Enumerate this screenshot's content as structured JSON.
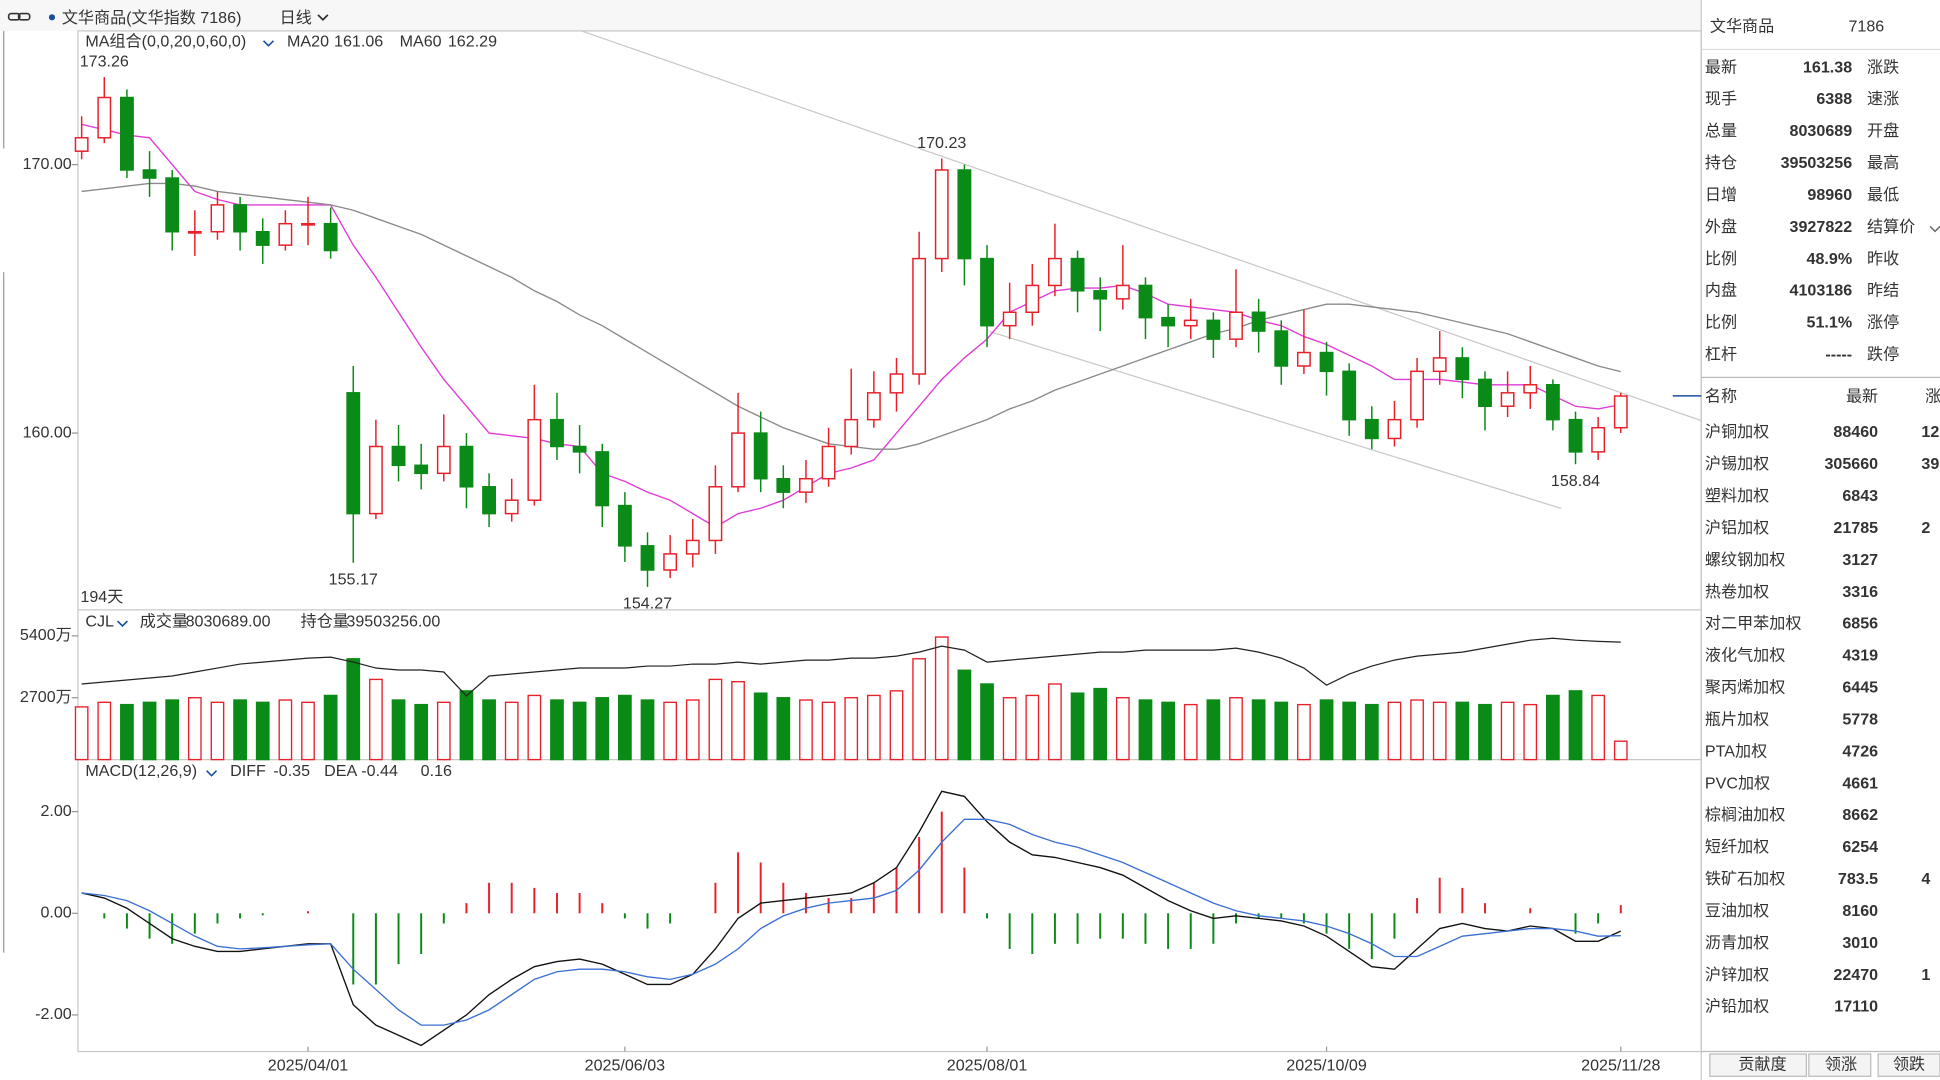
{
  "toolbar": {
    "name": "文华商品(文华指数 7186)",
    "period": "日线"
  },
  "chart_data": [
    {
      "type": "candlestick",
      "title": "MA组合(0,0,20,0,60,0)",
      "days_label": "194天",
      "up_color": "#e8202a",
      "down_color": "#0a8a16",
      "ylim": [
        153.46,
        174.98
      ],
      "yticks": [
        {
          "value": 160,
          "label": "160.00"
        },
        {
          "value": 170,
          "label": "170.00"
        }
      ],
      "categories": [
        null,
        null,
        null,
        null,
        null,
        null,
        null,
        null,
        null,
        null,
        "2025/04/01",
        null,
        null,
        null,
        null,
        null,
        null,
        null,
        null,
        null,
        null,
        null,
        null,
        null,
        "2025/06/03",
        null,
        null,
        null,
        null,
        null,
        null,
        null,
        null,
        null,
        null,
        null,
        null,
        null,
        null,
        null,
        "2025/08/01",
        null,
        null,
        null,
        null,
        null,
        null,
        null,
        null,
        null,
        null,
        null,
        null,
        null,
        null,
        "2025/10/09",
        null,
        null,
        null,
        null,
        null,
        null,
        null,
        null,
        null,
        null,
        null,
        null,
        "2025/11/28"
      ],
      "candles": [
        [
          170.5,
          171.8,
          170.2,
          171
        ],
        [
          171,
          173.26,
          170.8,
          172.5
        ],
        [
          172.5,
          172.8,
          169.5,
          169.8
        ],
        [
          169.8,
          170.5,
          168.8,
          169.5
        ],
        [
          169.5,
          169.8,
          166.8,
          167.5
        ],
        [
          167.5,
          168.3,
          166.6,
          167.5
        ],
        [
          167.5,
          169,
          167.2,
          168.5
        ],
        [
          168.5,
          168.8,
          166.8,
          167.5
        ],
        [
          167.5,
          168,
          166.3,
          167
        ],
        [
          167,
          168.3,
          166.8,
          167.8
        ],
        [
          167.8,
          168.8,
          167,
          167.8
        ],
        [
          167.8,
          168.4,
          166.5,
          166.8
        ],
        [
          161.5,
          162.5,
          155.17,
          157
        ],
        [
          157,
          160.5,
          156.8,
          159.5
        ],
        [
          159.5,
          160.3,
          158.2,
          158.8
        ],
        [
          158.8,
          159.6,
          157.9,
          158.5
        ],
        [
          158.5,
          160.7,
          158.2,
          159.5
        ],
        [
          159.5,
          160,
          157.2,
          158
        ],
        [
          158,
          158.5,
          156.5,
          157
        ],
        [
          157,
          158.3,
          156.7,
          157.5
        ],
        [
          157.5,
          161.8,
          157.3,
          160.5
        ],
        [
          160.5,
          161.5,
          159,
          159.5
        ],
        [
          159.5,
          160.3,
          158.5,
          159.3
        ],
        [
          159.3,
          159.6,
          156.5,
          157.3
        ],
        [
          157.3,
          157.8,
          155.2,
          155.8
        ],
        [
          155.8,
          156.3,
          154.27,
          154.9
        ],
        [
          154.9,
          156.2,
          154.6,
          155.5
        ],
        [
          155.5,
          156.8,
          155,
          156
        ],
        [
          156,
          158.8,
          155.5,
          158
        ],
        [
          158,
          161.5,
          157.8,
          160
        ],
        [
          160,
          160.8,
          157.8,
          158.3
        ],
        [
          158.3,
          158.8,
          157.2,
          157.8
        ],
        [
          157.8,
          159,
          157.4,
          158.3
        ],
        [
          158.3,
          160.2,
          158,
          159.5
        ],
        [
          159.5,
          162.4,
          159.2,
          160.5
        ],
        [
          160.5,
          162.3,
          160.2,
          161.5
        ],
        [
          161.5,
          162.8,
          160.8,
          162.2
        ],
        [
          162.2,
          167.5,
          161.8,
          166.5
        ],
        [
          166.5,
          170.23,
          166,
          169.8
        ],
        [
          169.8,
          170,
          165.5,
          166.5
        ],
        [
          166.5,
          167,
          163.2,
          164
        ],
        [
          164,
          165.6,
          163.5,
          164.5
        ],
        [
          164.5,
          166.3,
          164,
          165.5
        ],
        [
          165.5,
          167.8,
          165.1,
          166.5
        ],
        [
          166.5,
          166.8,
          164.5,
          165.3
        ],
        [
          165.3,
          165.8,
          163.8,
          165
        ],
        [
          165,
          167,
          164.6,
          165.5
        ],
        [
          165.5,
          165.8,
          163.5,
          164.3
        ],
        [
          164.3,
          164.8,
          163.2,
          164
        ],
        [
          164,
          165,
          163.5,
          164.2
        ],
        [
          164.2,
          164.5,
          162.8,
          163.5
        ],
        [
          163.5,
          166.1,
          163.2,
          164.5
        ],
        [
          164.5,
          165,
          163,
          163.8
        ],
        [
          163.8,
          164.2,
          161.8,
          162.5
        ],
        [
          162.5,
          164.6,
          162.2,
          163
        ],
        [
          163,
          163.4,
          161.4,
          162.3
        ],
        [
          162.3,
          162.6,
          159.9,
          160.5
        ],
        [
          160.5,
          161,
          159.4,
          159.8
        ],
        [
          159.8,
          161.2,
          159.5,
          160.5
        ],
        [
          160.5,
          162.8,
          160.2,
          162.3
        ],
        [
          162.3,
          163.8,
          161.8,
          162.8
        ],
        [
          162.8,
          163.2,
          161.3,
          162
        ],
        [
          162,
          162.3,
          160.1,
          161
        ],
        [
          161,
          162.3,
          160.6,
          161.5
        ],
        [
          161.5,
          162.5,
          160.9,
          161.8
        ],
        [
          161.8,
          162,
          160.1,
          160.5
        ],
        [
          160.5,
          160.8,
          158.84,
          159.3
        ],
        [
          159.3,
          160.6,
          159,
          160.2
        ],
        [
          160.2,
          161.5,
          160,
          161.38
        ]
      ],
      "series": [
        {
          "name": "MA20",
          "color": "#e03ad8",
          "values": [
            171.5,
            171.3,
            171.1,
            171,
            170,
            169,
            168.7,
            168.5,
            168.5,
            168.5,
            168.5,
            168.5,
            167,
            165.8,
            164.5,
            163.2,
            162,
            161,
            160,
            159.9,
            159.8,
            159.6,
            159.5,
            158.5,
            158.2,
            157.8,
            157.5,
            157,
            156.5,
            157,
            157.2,
            157.5,
            158,
            158.5,
            158.7,
            159,
            160,
            161,
            162,
            162.8,
            163.5,
            164.5,
            164.9,
            165.3,
            165.4,
            165.4,
            165.5,
            165.2,
            164.8,
            164.7,
            164.6,
            164.5,
            164.2,
            164,
            163.6,
            163.3,
            162.9,
            162.5,
            162,
            162,
            162,
            161.9,
            161.8,
            161.8,
            161.8,
            161.4,
            161,
            160.9,
            161.06
          ]
        },
        {
          "name": "MA60",
          "color": "#8a8a8a",
          "values": [
            169,
            169.1,
            169.2,
            169.3,
            169.3,
            169.2,
            169,
            168.9,
            168.8,
            168.7,
            168.6,
            168.5,
            168.3,
            168,
            167.7,
            167.4,
            167,
            166.6,
            166.2,
            165.8,
            165.3,
            164.9,
            164.4,
            164,
            163.5,
            163,
            162.5,
            162,
            161.5,
            161,
            160.6,
            160.2,
            159.9,
            159.6,
            159.5,
            159.4,
            159.4,
            159.6,
            159.9,
            160.2,
            160.5,
            160.9,
            161.2,
            161.6,
            161.9,
            162.2,
            162.5,
            162.8,
            163.1,
            163.4,
            163.7,
            163.9,
            164.2,
            164.4,
            164.6,
            164.8,
            164.8,
            164.7,
            164.6,
            164.5,
            164.3,
            164.1,
            163.9,
            163.7,
            163.4,
            163.1,
            162.8,
            162.5,
            162.29
          ]
        }
      ]
    },
    {
      "type": "bar",
      "title": "CJL",
      "ylim": [
        0,
        6480
      ],
      "yticks": [
        {
          "value": 2700,
          "label": "2700万"
        },
        {
          "value": 5400,
          "label": "5400万"
        }
      ],
      "values": [
        2300,
        2500,
        2400,
        2500,
        2600,
        2700,
        2500,
        2600,
        2500,
        2600,
        2500,
        2800,
        4400,
        3500,
        2600,
        2400,
        2500,
        3000,
        2600,
        2500,
        2800,
        2600,
        2500,
        2700,
        2800,
        2600,
        2500,
        2600,
        3500,
        3400,
        2900,
        2700,
        2600,
        2500,
        2700,
        2800,
        3000,
        4400,
        5350,
        3900,
        3300,
        2700,
        2800,
        3300,
        2900,
        3100,
        2700,
        2600,
        2500,
        2400,
        2600,
        2700,
        2600,
        2500,
        2400,
        2600,
        2500,
        2400,
        2500,
        2600,
        2500,
        2500,
        2400,
        2500,
        2400,
        2800,
        3000,
        2800,
        803.0689
      ],
      "readouts": [
        {
          "label": "成交量",
          "value": "8030689.00"
        },
        {
          "label": "持仓量",
          "value": "39503256.00"
        }
      ],
      "y2lim": [
        1000,
        4730
      ],
      "series": [
        {
          "color": "#222222",
          "axis": "y2",
          "values": [
            2900,
            2950,
            3000,
            3050,
            3100,
            3200,
            3300,
            3400,
            3450,
            3500,
            3550,
            3575,
            3450,
            3300,
            3250,
            3250,
            3200,
            2600,
            3100,
            3150,
            3200,
            3250,
            3300,
            3300,
            3300,
            3350,
            3350,
            3400,
            3400,
            3450,
            3400,
            3450,
            3500,
            3500,
            3550,
            3550,
            3600,
            3700,
            3850,
            3750,
            3450,
            3500,
            3550,
            3600,
            3650,
            3700,
            3700,
            3750,
            3750,
            3750,
            3750,
            3800,
            3700,
            3550,
            3300,
            2870,
            3150,
            3350,
            3500,
            3600,
            3650,
            3700,
            3800,
            3900,
            4000,
            4050,
            4000,
            3970,
            3950.3256
          ]
        }
      ]
    },
    {
      "type": "macd",
      "title": "MACD(12,26,9)",
      "ylim": [
        -2.72,
        3.0
      ],
      "yticks": [
        {
          "value": -2,
          "label": "-2.00"
        },
        {
          "value": 0,
          "label": "0.00"
        },
        {
          "value": 2,
          "label": "2.00"
        }
      ],
      "values": [
        0,
        -0.1,
        -0.3,
        -0.5,
        -0.6,
        -0.4,
        -0.2,
        -0.1,
        -0.04,
        0,
        0.04,
        0,
        -1.4,
        -1.4,
        -1.0,
        -0.8,
        -0.2,
        0.2,
        0.6,
        0.6,
        0.5,
        0.4,
        0.4,
        0.2,
        -0.1,
        -0.3,
        -0.2,
        0,
        0.6,
        1.2,
        1.0,
        0.6,
        0.4,
        0.3,
        0.3,
        0.6,
        0.9,
        1.5,
        2.0,
        0.9,
        -0.1,
        -0.7,
        -0.8,
        -0.6,
        -0.6,
        -0.5,
        -0.5,
        -0.6,
        -0.7,
        -0.7,
        -0.6,
        -0.2,
        -0.1,
        -0.1,
        -0.2,
        -0.4,
        -0.7,
        -0.9,
        -0.5,
        0.3,
        0.7,
        0.5,
        0.2,
        0,
        0.1,
        0,
        -0.4,
        -0.2,
        0.16
      ],
      "series": [
        {
          "name": "DIFF",
          "color": "#111111",
          "values": [
            0.4,
            0.3,
            0.1,
            -0.2,
            -0.5,
            -0.65,
            -0.75,
            -0.75,
            -0.7,
            -0.65,
            -0.6,
            -0.6,
            -1.8,
            -2.2,
            -2.4,
            -2.6,
            -2.3,
            -2.0,
            -1.6,
            -1.3,
            -1.05,
            -0.95,
            -0.9,
            -1.0,
            -1.2,
            -1.4,
            -1.4,
            -1.2,
            -0.7,
            -0.1,
            0.2,
            0.25,
            0.3,
            0.35,
            0.4,
            0.6,
            0.9,
            1.6,
            2.4,
            2.3,
            1.8,
            1.4,
            1.15,
            1.1,
            1.0,
            0.9,
            0.75,
            0.5,
            0.25,
            0.05,
            -0.1,
            -0.05,
            -0.1,
            -0.15,
            -0.25,
            -0.45,
            -0.75,
            -1.05,
            -1.1,
            -0.7,
            -0.3,
            -0.2,
            -0.3,
            -0.35,
            -0.25,
            -0.3,
            -0.55,
            -0.55,
            -0.35
          ]
        },
        {
          "name": "DEA",
          "color": "#3b6fd4",
          "values": [
            0.4,
            0.35,
            0.25,
            0.05,
            -0.2,
            -0.45,
            -0.65,
            -0.7,
            -0.68,
            -0.65,
            -0.62,
            -0.6,
            -1.1,
            -1.5,
            -1.9,
            -2.2,
            -2.2,
            -2.1,
            -1.9,
            -1.6,
            -1.3,
            -1.15,
            -1.1,
            -1.1,
            -1.15,
            -1.25,
            -1.3,
            -1.2,
            -1.0,
            -0.7,
            -0.3,
            -0.05,
            0.1,
            0.2,
            0.25,
            0.3,
            0.45,
            0.85,
            1.4,
            1.85,
            1.85,
            1.75,
            1.55,
            1.4,
            1.3,
            1.15,
            1.0,
            0.8,
            0.6,
            0.4,
            0.2,
            0.05,
            -0.05,
            -0.1,
            -0.15,
            -0.25,
            -0.4,
            -0.6,
            -0.85,
            -0.85,
            -0.65,
            -0.45,
            -0.4,
            -0.35,
            -0.3,
            -0.3,
            -0.35,
            -0.45,
            -0.44
          ]
        }
      ]
    }
  ],
  "quote": {
    "title": "文华商品",
    "code": "7186",
    "rows": [
      {
        "label": "最新",
        "value": "161.38",
        "label2": "涨跌"
      },
      {
        "label": "现手",
        "value": "6388",
        "label2": "速涨"
      },
      {
        "label": "总量",
        "value": "8030689",
        "label2": "开盘"
      },
      {
        "label": "持仓",
        "value": "39503256",
        "label2": "最高"
      },
      {
        "label": "日增",
        "value": "98960",
        "label2": "最低"
      },
      {
        "label": "外盘",
        "value": "3927822",
        "label2": "结算价"
      },
      {
        "label": "比例",
        "value": "48.9%",
        "label2": "昨收"
      },
      {
        "label": "内盘",
        "value": "4103186",
        "label2": "昨结"
      },
      {
        "label": "比例",
        "value": "51.1%",
        "label2": "涨停"
      },
      {
        "label": "杠杆",
        "value": "-----",
        "label2": "跌停"
      }
    ]
  },
  "list": {
    "headers": [
      "名称",
      "最新",
      "涨"
    ],
    "rows": [
      {
        "name": "沪铜加权",
        "price": "88460",
        "change": "12"
      },
      {
        "name": "沪锡加权",
        "price": "305660",
        "change": "39"
      },
      {
        "name": "塑料加权",
        "price": "6843"
      },
      {
        "name": "沪铝加权",
        "price": "21785",
        "change": "2"
      },
      {
        "name": "螺纹钢加权",
        "price": "3127"
      },
      {
        "name": "热卷加权",
        "price": "3316"
      },
      {
        "name": "对二甲苯加权",
        "price": "6856"
      },
      {
        "name": "液化气加权",
        "price": "4319"
      },
      {
        "name": "聚丙烯加权",
        "price": "6445"
      },
      {
        "name": "瓶片加权",
        "price": "5778"
      },
      {
        "name": "PTA加权",
        "price": "4726"
      },
      {
        "name": "PVC加权",
        "price": "4661"
      },
      {
        "name": "棕榈油加权",
        "price": "8662"
      },
      {
        "name": "短纤加权",
        "price": "6254"
      },
      {
        "name": "铁矿石加权",
        "price": "783.5",
        "change": "4"
      },
      {
        "name": "豆油加权",
        "price": "8160"
      },
      {
        "name": "沥青加权",
        "price": "3010"
      },
      {
        "name": "沪锌加权",
        "price": "22470",
        "change": "1"
      },
      {
        "name": "沪铅加权",
        "price": "17110"
      }
    ]
  },
  "tabs": [
    "贡献度",
    "领涨",
    "领跌"
  ]
}
